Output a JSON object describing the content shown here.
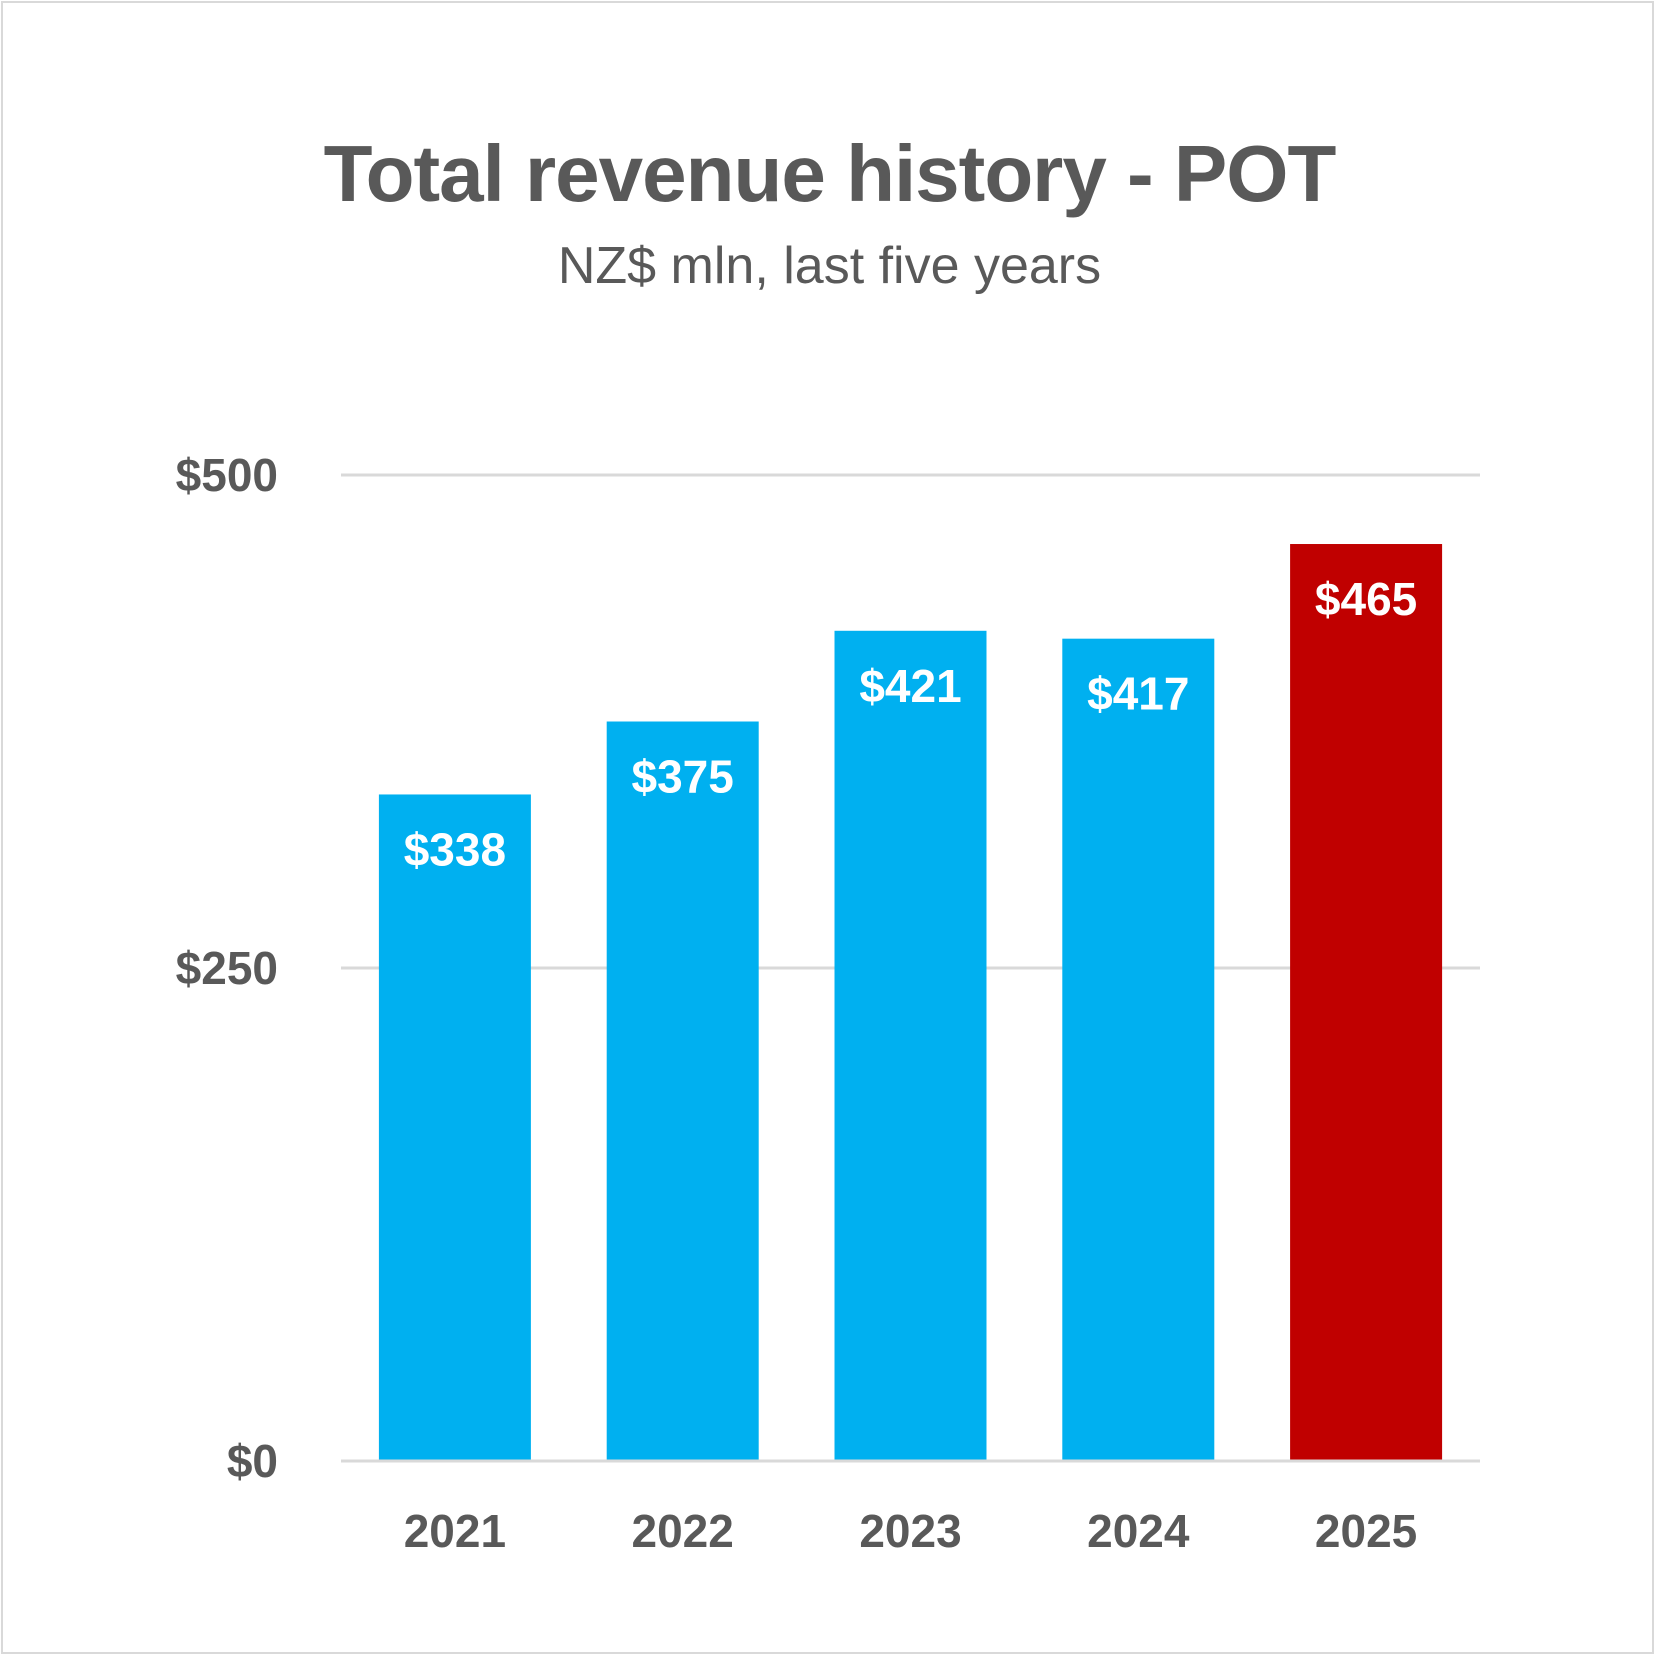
{
  "chart_data": {
    "type": "bar",
    "title": "Total revenue history - POT",
    "subtitle": "NZ$ mln, last five years",
    "categories": [
      "2021",
      "2022",
      "2023",
      "2024",
      "2025"
    ],
    "values": [
      338,
      375,
      421,
      417,
      465
    ],
    "data_labels": [
      "$338",
      "$375",
      "$421",
      "$417",
      "$465"
    ],
    "colors": [
      "#00b0f0",
      "#00b0f0",
      "#00b0f0",
      "#00b0f0",
      "#c00000"
    ],
    "ylim": [
      0,
      500
    ],
    "yticks": [
      0,
      250,
      500
    ],
    "ytick_labels": [
      "$0",
      "$250",
      "$500"
    ],
    "grid": true,
    "xlabel": "",
    "ylabel": ""
  }
}
